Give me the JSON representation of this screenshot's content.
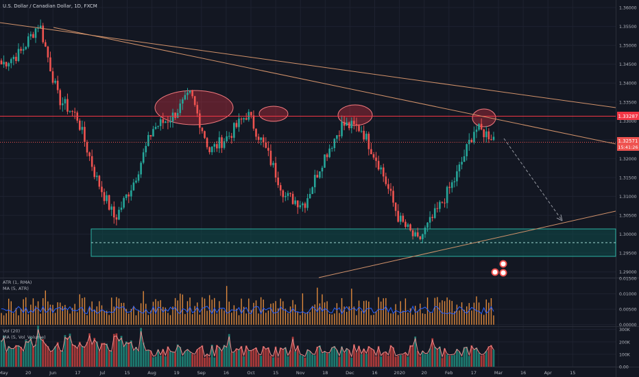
{
  "header": {
    "title": "U.S. Dollar / Canadian Dollar, 1D, FXCM"
  },
  "colors": {
    "background": "#131722",
    "grid": "#1e2230",
    "up": "#26a69a",
    "down": "#ef5350",
    "trendline": "#d3936b",
    "resistance": "#f23645",
    "support_zone": "#0e4d4a",
    "axis_text": "#b2b5be",
    "atr_line": "#2962ff",
    "vol_ma": "#ef8d8d"
  },
  "chart_data": {
    "type": "candlestick",
    "price_axis": {
      "ylim": [
        1.2885,
        1.362
      ],
      "ticks": [
        "1.36000",
        "1.35500",
        "1.35000",
        "1.34500",
        "1.34000",
        "1.33500",
        "1.33000",
        "1.32500",
        "1.32000",
        "1.31500",
        "1.31000",
        "1.30500",
        "1.30000",
        "1.29500",
        "1.29000"
      ]
    },
    "time_axis": {
      "ticks": [
        "May",
        "20",
        "Jun",
        "17",
        "Jul",
        "15",
        "Aug",
        "19",
        "Sep",
        "16",
        "Oct",
        "15",
        "Nov",
        "18",
        "Dec",
        "16",
        "2020",
        "20",
        "Feb",
        "17",
        "Mar",
        "16",
        "Apr",
        "15"
      ]
    },
    "price_labels": [
      {
        "name": "resistance",
        "text": "1.33287",
        "color": "#f23645"
      },
      {
        "name": "last",
        "text": "1.32571",
        "color": "#ef5350"
      },
      {
        "name": "countdown",
        "text": "15:41:26",
        "color": "#ef5350"
      }
    ],
    "levels": {
      "resistance": 1.33287,
      "last": 1.32571,
      "support_top": 1.3023,
      "support_mid": 1.2988,
      "support_bottom": 1.2952
    },
    "candles_summary": {
      "start": "2019-05-01",
      "end": "2020-02-13",
      "anchors": [
        [
          "May",
          1.345
        ],
        [
          "May-late",
          1.348
        ],
        [
          "Jun-start",
          1.356
        ],
        [
          "Jun-mid",
          1.336
        ],
        [
          "Jun-end",
          1.331
        ],
        [
          "Jul-start",
          1.315
        ],
        [
          "Jul-mid",
          1.304
        ],
        [
          "Jul-end",
          1.314
        ],
        [
          "Aug-mid",
          1.328
        ],
        [
          "Aug-end",
          1.331
        ],
        [
          "Sep-start",
          1.337
        ],
        [
          "Sep-mid",
          1.322
        ],
        [
          "Sep-end",
          1.326
        ],
        [
          "Oct-start",
          1.332
        ],
        [
          "Oct-mid",
          1.322
        ],
        [
          "Oct-end",
          1.31
        ],
        [
          "Nov-start",
          1.308
        ],
        [
          "Nov-mid",
          1.32
        ],
        [
          "Nov-end",
          1.329
        ],
        [
          "Dec-start",
          1.328
        ],
        [
          "Dec-mid",
          1.318
        ],
        [
          "Dec-end",
          1.304
        ],
        [
          "Jan-start",
          1.298
        ],
        [
          "Jan-mid",
          1.306
        ],
        [
          "Jan-end",
          1.315
        ],
        [
          "Feb-start",
          1.328
        ],
        [
          "Feb-mid",
          1.3257
        ]
      ]
    },
    "indicators": [
      {
        "name": "ATR (1, RMA)",
        "ticks": [
          "0.01500",
          "0.01000",
          "0.00500",
          "0.00000"
        ],
        "ylim": [
          -0.0005,
          0.015
        ]
      },
      {
        "name": "MA (5, ATR)"
      },
      {
        "name": "Vol (20)",
        "ticks": [
          "300K",
          "200K",
          "100K",
          "0.00"
        ],
        "ylim": [
          0,
          320000
        ]
      },
      {
        "name": "MA (5, Vol_Volume)"
      }
    ]
  }
}
